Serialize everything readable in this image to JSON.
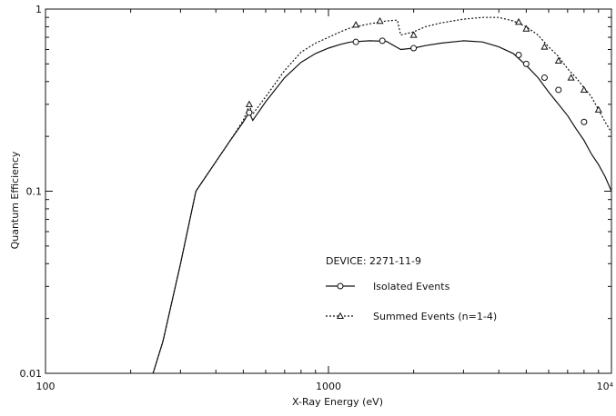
{
  "chart_data": {
    "type": "line",
    "title": "",
    "xlabel": "X-Ray Energy (eV)",
    "ylabel": "Quantum Efficiency",
    "xscale": "log",
    "yscale": "log",
    "xlim": [
      100,
      10000
    ],
    "ylim": [
      0.01,
      1
    ],
    "x_tick_labels": [
      "100",
      "1000",
      "10⁴"
    ],
    "y_tick_labels": [
      "0.01",
      "0.1",
      "1"
    ],
    "grid": false,
    "legend": {
      "placement": "center-right",
      "title": "DEVICE: 2271-11-9",
      "entries": [
        "Isolated Events",
        "Summed Events (n=1-4)"
      ]
    },
    "series": [
      {
        "name": "Isolated Events",
        "line_style": "solid",
        "marker": "circle",
        "line": [
          [
            240,
            0.01
          ],
          [
            260,
            0.015
          ],
          [
            300,
            0.04
          ],
          [
            340,
            0.1
          ],
          [
            400,
            0.145
          ],
          [
            450,
            0.19
          ],
          [
            500,
            0.24
          ],
          [
            520,
            0.265
          ],
          [
            525,
            0.27
          ],
          [
            540,
            0.245
          ],
          [
            600,
            0.31
          ],
          [
            700,
            0.42
          ],
          [
            800,
            0.51
          ],
          [
            900,
            0.57
          ],
          [
            1000,
            0.61
          ],
          [
            1100,
            0.64
          ],
          [
            1200,
            0.66
          ],
          [
            1400,
            0.67
          ],
          [
            1600,
            0.665
          ],
          [
            1800,
            0.6
          ],
          [
            2000,
            0.61
          ],
          [
            2200,
            0.63
          ],
          [
            2500,
            0.65
          ],
          [
            3000,
            0.67
          ],
          [
            3500,
            0.66
          ],
          [
            4000,
            0.62
          ],
          [
            4500,
            0.57
          ],
          [
            5000,
            0.49
          ],
          [
            5500,
            0.42
          ],
          [
            6000,
            0.35
          ],
          [
            6500,
            0.3
          ],
          [
            7000,
            0.26
          ],
          [
            7500,
            0.22
          ],
          [
            8000,
            0.19
          ],
          [
            8500,
            0.16
          ],
          [
            9000,
            0.14
          ],
          [
            9500,
            0.12
          ],
          [
            10000,
            0.1
          ]
        ],
        "markers": [
          [
            525,
            0.27
          ],
          [
            1250,
            0.66
          ],
          [
            1550,
            0.67
          ],
          [
            2000,
            0.61
          ],
          [
            4700,
            0.56
          ],
          [
            5000,
            0.5
          ],
          [
            5800,
            0.42
          ],
          [
            6500,
            0.36
          ],
          [
            8000,
            0.24
          ]
        ]
      },
      {
        "name": "Summed Events (n=1-4)",
        "line_style": "dotted",
        "marker": "triangle",
        "line": [
          [
            240,
            0.01
          ],
          [
            260,
            0.015
          ],
          [
            300,
            0.04
          ],
          [
            340,
            0.1
          ],
          [
            400,
            0.145
          ],
          [
            450,
            0.19
          ],
          [
            500,
            0.245
          ],
          [
            520,
            0.285
          ],
          [
            525,
            0.295
          ],
          [
            540,
            0.265
          ],
          [
            600,
            0.33
          ],
          [
            700,
            0.46
          ],
          [
            800,
            0.58
          ],
          [
            900,
            0.65
          ],
          [
            1000,
            0.7
          ],
          [
            1100,
            0.75
          ],
          [
            1200,
            0.79
          ],
          [
            1400,
            0.83
          ],
          [
            1600,
            0.86
          ],
          [
            1750,
            0.87
          ],
          [
            1800,
            0.72
          ],
          [
            2000,
            0.75
          ],
          [
            2200,
            0.8
          ],
          [
            2500,
            0.84
          ],
          [
            3000,
            0.88
          ],
          [
            3500,
            0.9
          ],
          [
            4000,
            0.9
          ],
          [
            4500,
            0.86
          ],
          [
            5000,
            0.8
          ],
          [
            5500,
            0.72
          ],
          [
            6000,
            0.62
          ],
          [
            6500,
            0.55
          ],
          [
            7000,
            0.47
          ],
          [
            7500,
            0.42
          ],
          [
            8000,
            0.37
          ],
          [
            8500,
            0.33
          ],
          [
            9000,
            0.28
          ],
          [
            9500,
            0.24
          ],
          [
            10000,
            0.21
          ]
        ],
        "markers": [
          [
            525,
            0.3
          ],
          [
            1250,
            0.82
          ],
          [
            1520,
            0.86
          ],
          [
            2000,
            0.72
          ],
          [
            4700,
            0.85
          ],
          [
            5000,
            0.78
          ],
          [
            5800,
            0.62
          ],
          [
            6500,
            0.52
          ],
          [
            7200,
            0.42
          ],
          [
            8000,
            0.36
          ],
          [
            9000,
            0.28
          ]
        ]
      }
    ]
  }
}
